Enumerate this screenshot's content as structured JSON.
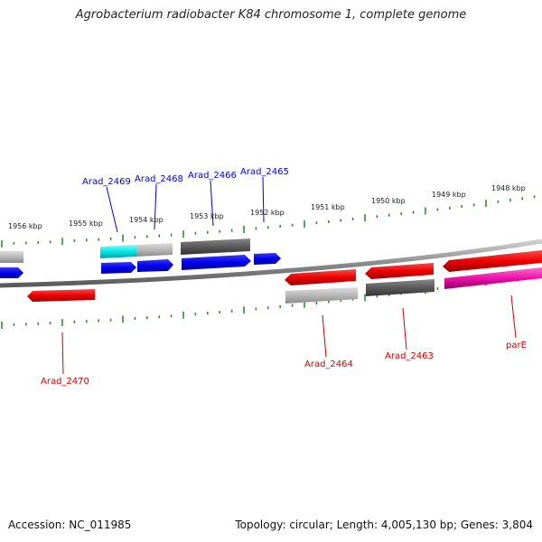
{
  "title": "Agrobacterium radiobacter K84 chromosome 1, complete genome",
  "accession": "Accession: NC_011985",
  "summary": {
    "topology_prefix": "Topology: ",
    "topology": "circular",
    "length_prefix": "; Length: ",
    "length": "4,005,130 bp",
    "genes_prefix": "; Genes: ",
    "genes": "3,804"
  },
  "colors": {
    "backbone": "#7a7a7a",
    "tick": "#2f8f2f",
    "forward_label": "#0000cc",
    "reverse_label": "#cc0000"
  },
  "scale_labels": [
    "1956 kbp",
    "1955 kbp",
    "1954 kbp",
    "1953 kbp",
    "1952 kbp",
    "1951 kbp",
    "1950 kbp",
    "1949 kbp",
    "1948 kbp"
  ],
  "gene_labels": {
    "forward": [
      "Arad_2469",
      "Arad_2468",
      "Arad_2466",
      "Arad_2465"
    ],
    "reverse": [
      "Arad_2470",
      "Arad_2464",
      "Arad_2463",
      "parE"
    ]
  }
}
